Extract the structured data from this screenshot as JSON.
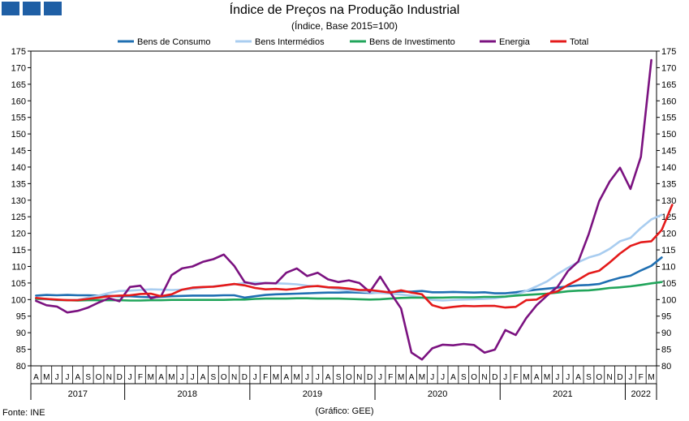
{
  "header": {
    "title": "Índice de Preços na Produção Industrial",
    "subtitle": "(Índice, Base 2015=100)"
  },
  "footer": {
    "source": "Fonte: INE",
    "credit": "(Gráfico: GEE)"
  },
  "chart_data": {
    "type": "line",
    "title": "Índice de Preços na Produção Industrial",
    "subtitle": "(Índice, Base 2015=100)",
    "ylim": [
      80,
      175
    ],
    "yticks": [
      80,
      85,
      90,
      95,
      100,
      105,
      110,
      115,
      120,
      125,
      130,
      135,
      140,
      145,
      150,
      155,
      160,
      165,
      170,
      175
    ],
    "grid": false,
    "legend_position": "top",
    "x_month_labels": [
      "A",
      "M",
      "J",
      "J",
      "A",
      "S",
      "O",
      "N",
      "D",
      "J",
      "F",
      "M",
      "A",
      "M",
      "J",
      "J",
      "A",
      "S",
      "O",
      "N",
      "D",
      "J",
      "F",
      "M",
      "A",
      "M",
      "J",
      "J",
      "A",
      "S",
      "O",
      "N",
      "D",
      "J",
      "F",
      "M",
      "A",
      "M",
      "J",
      "J",
      "A",
      "S",
      "O",
      "N",
      "D",
      "J",
      "F",
      "M",
      "A",
      "M",
      "J",
      "J",
      "A",
      "S",
      "O",
      "N",
      "D",
      "J",
      "F",
      "M"
    ],
    "x_year_groups": [
      {
        "label": "2017",
        "months": 9
      },
      {
        "label": "2018",
        "months": 12
      },
      {
        "label": "2019",
        "months": 12
      },
      {
        "label": "2020",
        "months": 12
      },
      {
        "label": "2021",
        "months": 12
      },
      {
        "label": "2022",
        "months": 3
      }
    ],
    "series": [
      {
        "name": "Bens de Consumo",
        "color": "#1f6fb2",
        "values": [
          101.2,
          101.4,
          101.3,
          101.4,
          101.3,
          101.3,
          101.2,
          101.1,
          101.0,
          101.0,
          100.8,
          100.7,
          100.8,
          101.0,
          101.1,
          101.2,
          101.2,
          101.2,
          101.3,
          101.3,
          100.6,
          101.0,
          101.4,
          101.6,
          101.7,
          101.8,
          101.9,
          102.0,
          102.1,
          102.1,
          102.2,
          102.1,
          102.0,
          102.1,
          102.3,
          102.4,
          102.4,
          102.6,
          102.2,
          102.2,
          102.3,
          102.2,
          102.1,
          102.2,
          101.9,
          101.9,
          102.2,
          102.6,
          103.0,
          103.3,
          103.6,
          104.0,
          104.3,
          104.4,
          104.7,
          105.7,
          106.6,
          107.2,
          108.8,
          110.2,
          112.7
        ]
      },
      {
        "name": "Bens Intermédios",
        "color": "#a9cdf0",
        "values": [
          100.2,
          100.0,
          99.8,
          99.8,
          99.9,
          100.6,
          101.2,
          102.0,
          102.6,
          102.7,
          102.9,
          103.1,
          103.0,
          102.9,
          103.0,
          103.2,
          103.6,
          104.0,
          104.3,
          104.6,
          105.0,
          105.1,
          105.0,
          104.9,
          104.8,
          104.6,
          104.2,
          104.0,
          103.6,
          103.1,
          102.8,
          102.5,
          102.2,
          102.0,
          101.8,
          101.5,
          101.2,
          100.6,
          99.9,
          99.7,
          99.9,
          100.0,
          100.1,
          100.2,
          100.4,
          100.8,
          101.5,
          102.6,
          104.0,
          105.5,
          107.7,
          109.6,
          111.3,
          112.7,
          113.6,
          115.3,
          117.6,
          118.6,
          121.6,
          124.2,
          125.6
        ]
      },
      {
        "name": "Bens de Investimento",
        "color": "#21a55b",
        "values": [
          100.2,
          100.2,
          99.9,
          99.8,
          99.7,
          99.8,
          99.8,
          99.8,
          99.8,
          99.7,
          99.7,
          99.8,
          99.8,
          99.9,
          99.9,
          99.9,
          99.9,
          99.9,
          99.9,
          100.0,
          100.0,
          100.2,
          100.3,
          100.3,
          100.3,
          100.4,
          100.4,
          100.3,
          100.3,
          100.3,
          100.2,
          100.1,
          100.0,
          100.1,
          100.3,
          100.5,
          100.6,
          100.6,
          100.6,
          100.6,
          100.7,
          100.7,
          100.7,
          100.8,
          100.8,
          100.9,
          101.2,
          101.4,
          101.6,
          101.8,
          102.1,
          102.5,
          102.7,
          102.8,
          103.1,
          103.5,
          103.7,
          104.0,
          104.4,
          104.9,
          105.3
        ]
      },
      {
        "name": "Energia",
        "color": "#7b1280",
        "values": [
          99.6,
          98.3,
          97.9,
          96.1,
          96.6,
          97.6,
          99.1,
          100.4,
          99.5,
          103.8,
          104.2,
          100.4,
          101.1,
          107.4,
          109.4,
          110.0,
          111.4,
          112.2,
          113.6,
          110.2,
          105.3,
          104.6,
          105.0,
          104.9,
          108.1,
          109.4,
          107.1,
          108.1,
          106.1,
          105.3,
          105.8,
          105.0,
          102.3,
          106.9,
          102.0,
          97.3,
          84.0,
          81.9,
          85.3,
          86.4,
          86.2,
          86.6,
          86.3,
          84.0,
          84.9,
          90.8,
          89.3,
          94.4,
          98.3,
          101.2,
          103.8,
          108.6,
          111.5,
          119.8,
          129.7,
          135.6,
          139.8,
          133.4,
          143.1,
          172.3
        ]
      },
      {
        "name": "Total",
        "color": "#e41a1a",
        "values": [
          100.5,
          100.2,
          100.0,
          99.8,
          99.8,
          100.2,
          100.6,
          101.0,
          101.2,
          101.3,
          101.7,
          101.8,
          101.0,
          101.6,
          103.0,
          103.6,
          103.8,
          103.9,
          104.3,
          104.7,
          104.3,
          103.5,
          103.1,
          103.2,
          103.0,
          103.3,
          103.9,
          104.1,
          103.7,
          103.6,
          103.3,
          102.9,
          102.9,
          102.5,
          102.1,
          102.8,
          102.1,
          101.6,
          98.3,
          97.4,
          97.8,
          98.1,
          98.0,
          98.1,
          98.1,
          97.6,
          97.8,
          99.8,
          100.0,
          101.7,
          102.5,
          104.4,
          106.0,
          107.9,
          108.7,
          111.2,
          113.9,
          116.2,
          117.3,
          117.6,
          121.0,
          128.6
        ]
      }
    ]
  }
}
